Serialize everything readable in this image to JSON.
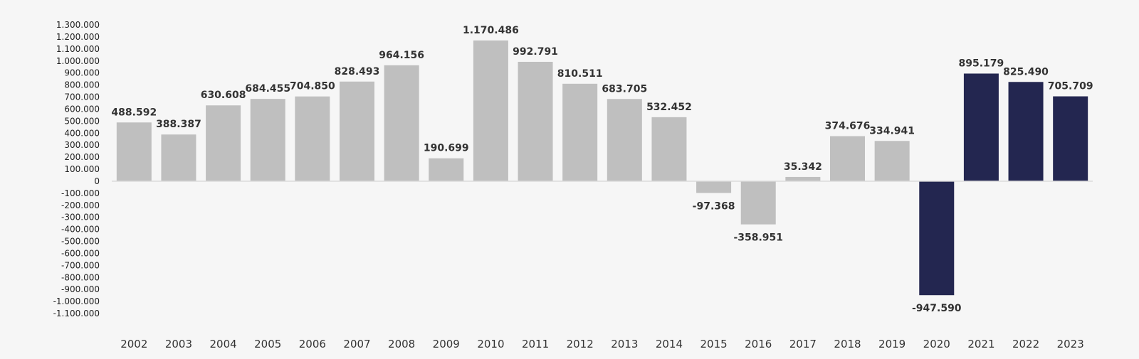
{
  "chart_data": {
    "type": "bar",
    "title": "",
    "xlabel": "",
    "ylabel": "",
    "ylim": [
      -1100000,
      1300000
    ],
    "yticks": [
      1300000,
      1200000,
      1100000,
      1000000,
      900000,
      800000,
      700000,
      600000,
      500000,
      400000,
      300000,
      200000,
      100000,
      0,
      -100000,
      -200000,
      -300000,
      -400000,
      -500000,
      -600000,
      -700000,
      -800000,
      -900000,
      -1000000,
      -1100000
    ],
    "ytick_labels": [
      "1.300.000",
      "1.200.000",
      "1.100.000",
      "1.000.000",
      "900.000",
      "800.000",
      "700.000",
      "600.000",
      "500.000",
      "400.000",
      "300.000",
      "200.000",
      "100.000",
      "0",
      "-100.000",
      "-200.000",
      "-300.000",
      "-400.000",
      "-500.000",
      "-600.000",
      "-700.000",
      "-800.000",
      "-900.000",
      "-1.000.000",
      "-1.100.000"
    ],
    "categories": [
      "2002",
      "2003",
      "2004",
      "2005",
      "2006",
      "2007",
      "2008",
      "2009",
      "2010",
      "2011",
      "2012",
      "2013",
      "2014",
      "2015",
      "2016",
      "2017",
      "2018",
      "2019",
      "2020",
      "2021",
      "2022",
      "2023"
    ],
    "values": [
      488592,
      388387,
      630608,
      684455,
      704850,
      828493,
      964156,
      190699,
      1170486,
      992791,
      810511,
      683705,
      532452,
      -97368,
      -358951,
      35342,
      374676,
      334941,
      -947590,
      895179,
      825490,
      705709
    ],
    "value_labels": [
      "488.592",
      "388.387",
      "630.608",
      "684.455",
      "704.850",
      "828.493",
      "964.156",
      "190.699",
      "1.170.486",
      "992.791",
      "810.511",
      "683.705",
      "532.452",
      "-97.368",
      "-358.951",
      "35.342",
      "374.676",
      "334.941",
      "-947.590",
      "895.179",
      "825.490",
      "705.709"
    ],
    "highlight_categories": [
      "2020",
      "2021",
      "2022",
      "2023"
    ],
    "colors": {
      "default_bar": "#bfbfbf",
      "highlight_bar": "#232650",
      "axis_line": "#d9d9d9",
      "background": "#f6f6f6"
    },
    "grid": false,
    "legend": "none"
  }
}
